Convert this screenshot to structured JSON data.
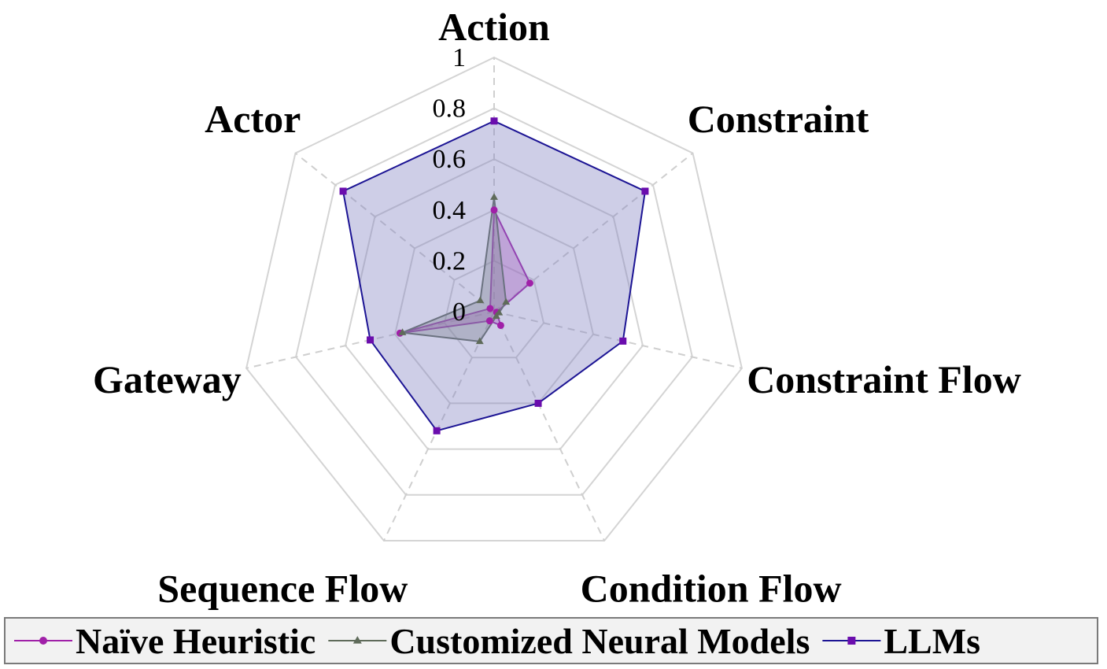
{
  "chart_data": {
    "type": "radar",
    "axes": [
      "Action",
      "Constraint",
      "Constraint Flow",
      "Condition Flow",
      "Sequence Flow",
      "Gateway",
      "Actor"
    ],
    "ticks": [
      "0",
      "0.2",
      "0.4",
      "0.6",
      "0.8",
      "1"
    ],
    "rlim": [
      0,
      1
    ],
    "grid": true,
    "legend_position": "bottom",
    "series": [
      {
        "name": "Naïve Heuristic",
        "values": [
          0.4,
          0.18,
          0.01,
          0.06,
          0.04,
          0.38,
          0.02
        ],
        "color": "#a020a8",
        "fill": "#c04fc0",
        "marker": "circle"
      },
      {
        "name": "Customized Neural Models",
        "values": [
          0.45,
          0.06,
          0.02,
          0.02,
          0.13,
          0.37,
          0.07
        ],
        "color": "#5f6b5a",
        "fill": "#808a78",
        "marker": "triangle"
      },
      {
        "name": "LLMs",
        "values": [
          0.75,
          0.76,
          0.52,
          0.4,
          0.52,
          0.5,
          0.76
        ],
        "color": "#1c1494",
        "fill": "#7f7fc0",
        "marker": "square",
        "marker_color": "#6a0dad"
      }
    ]
  }
}
